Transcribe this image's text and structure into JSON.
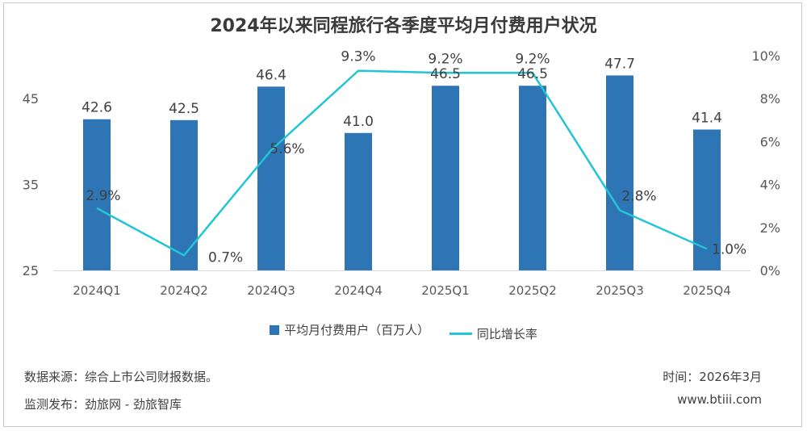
{
  "chart_data": {
    "type": "bar",
    "title": "2024年以来同程旅行各季度平均月付费用户状况",
    "categories": [
      "2024Q1",
      "2024Q2",
      "2024Q3",
      "2024Q4",
      "2025Q1",
      "2025Q2",
      "2025Q3",
      "2025Q4"
    ],
    "series": [
      {
        "name": "平均月付费用户（百万人）",
        "type": "bar",
        "axis": "left",
        "values": [
          42.6,
          42.5,
          46.4,
          41.0,
          46.5,
          46.5,
          47.7,
          41.4
        ],
        "labels": [
          "42.6",
          "42.5",
          "46.4",
          "41.0",
          "46.5",
          "46.5",
          "47.7",
          "41.4"
        ]
      },
      {
        "name": "同比增长率",
        "type": "line",
        "axis": "right",
        "values": [
          2.9,
          0.7,
          5.6,
          9.3,
          9.2,
          9.2,
          2.8,
          1.0
        ],
        "labels": [
          "2.9%",
          "0.7%",
          "5.6%",
          "9.3%",
          "9.2%",
          "9.2%",
          "2.8%",
          "1.0%"
        ]
      }
    ],
    "y_left": {
      "ylim": [
        25,
        50
      ],
      "ticks": [
        "25",
        "35",
        "45"
      ]
    },
    "y_right": {
      "ylim": [
        0,
        10
      ],
      "ticks": [
        "0%",
        "2%",
        "4%",
        "6%",
        "8%",
        "10%"
      ]
    },
    "legend_position": "bottom",
    "grid": false
  },
  "colors": {
    "bar": "#2e75b6",
    "line": "#22c5d4",
    "axis": "#d9d9d9"
  },
  "footer": {
    "source": "数据来源：综合上市公司财报数据。",
    "publisher": "监测发布：劲旅网 - 劲旅智库",
    "time": "时间：2026年3月",
    "website": "www.btiii.com"
  }
}
